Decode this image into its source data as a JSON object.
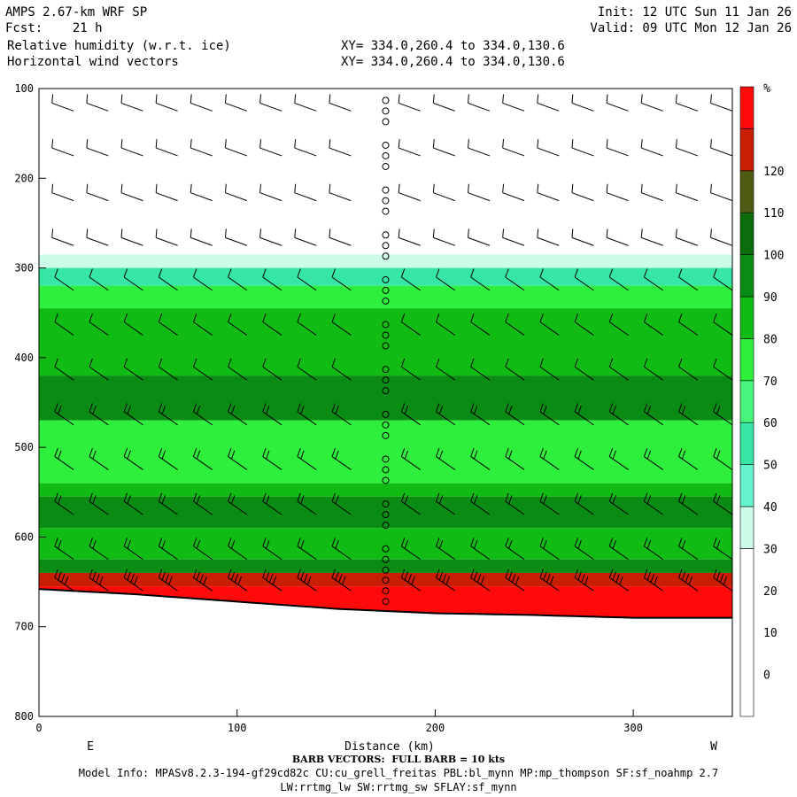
{
  "header": {
    "title": "AMPS 2.67-km WRF SP",
    "fcst": "Fcst:    21 h",
    "field1": "Relative humidity (w.r.t. ice)",
    "field2": "Horizontal wind vectors",
    "init": "Init: 12 UTC Sun 11 Jan 26",
    "valid": "Valid: 09 UTC Mon 12 Jan 26",
    "xy1": "XY= 334.0,260.4 to 334.0,130.6",
    "xy2": "XY= 334.0,260.4 to 334.0,130.6"
  },
  "footer": {
    "barb": "BARB VECTORS:  FULL BARB = 10 kts",
    "model1": "Model Info: MPASv8.2.3-194-gf29cd82c CU:cu_grell_freitas PBL:bl_mynn MP:mp_thompson SF:sf_noahmp 2.7",
    "model2": "LW:rrtmg_lw SW:rrtmg_sw SFLAY:sf_mynn"
  },
  "chart_data": {
    "type": "heatmap",
    "xlabel": "Distance (km)",
    "ylabel": "",
    "xlim": [
      0,
      350
    ],
    "ylim": [
      800,
      100
    ],
    "x_ticks": [
      0,
      100,
      200,
      300
    ],
    "y_ticks": [
      100,
      200,
      300,
      400,
      500,
      600,
      700,
      800
    ],
    "x_end_labels": {
      "left": "E",
      "right": "W"
    },
    "colorbar": {
      "unit": "%",
      "tick_labels": [
        0,
        10,
        20,
        30,
        40,
        50,
        60,
        70,
        80,
        90,
        100,
        110,
        120
      ],
      "levels": [
        {
          "min": -10,
          "max": 30,
          "color": "#ffffff"
        },
        {
          "min": 30,
          "max": 40,
          "color": "#ccfce8"
        },
        {
          "min": 40,
          "max": 50,
          "color": "#66f4cf"
        },
        {
          "min": 50,
          "max": 60,
          "color": "#36e6a4"
        },
        {
          "min": 60,
          "max": 70,
          "color": "#45f57c"
        },
        {
          "min": 70,
          "max": 80,
          "color": "#2ef03c"
        },
        {
          "min": 80,
          "max": 90,
          "color": "#10bc14"
        },
        {
          "min": 90,
          "max": 100,
          "color": "#0a8c14"
        },
        {
          "min": 100,
          "max": 110,
          "color": "#0b6e0b"
        },
        {
          "min": 110,
          "max": 120,
          "color": "#4d5c12"
        },
        {
          "min": 120,
          "max": 130,
          "color": "#c81e04"
        },
        {
          "min": 130,
          "max": 140,
          "color": "#ff0a0a"
        }
      ]
    },
    "rh_layers": [
      {
        "top_hPa": 285,
        "bottom_hPa": 300,
        "rh": 35
      },
      {
        "top_hPa": 300,
        "bottom_hPa": 320,
        "rh": 55
      },
      {
        "top_hPa": 320,
        "bottom_hPa": 345,
        "rh": 75
      },
      {
        "top_hPa": 345,
        "bottom_hPa": 420,
        "rh": 85
      },
      {
        "top_hPa": 420,
        "bottom_hPa": 470,
        "rh": 95
      },
      {
        "top_hPa": 470,
        "bottom_hPa": 540,
        "rh": 75
      },
      {
        "top_hPa": 540,
        "bottom_hPa": 555,
        "rh": 85
      },
      {
        "top_hPa": 555,
        "bottom_hPa": 590,
        "rh": 95
      },
      {
        "top_hPa": 590,
        "bottom_hPa": 625,
        "rh": 80
      },
      {
        "top_hPa": 625,
        "bottom_hPa": 640,
        "rh": 95
      },
      {
        "top_hPa": 640,
        "bottom_hPa": 655,
        "rh": 125
      },
      {
        "top_hPa": 655,
        "bottom_hPa": 700,
        "rh": 135
      }
    ],
    "terrain_hPa": {
      "x": [
        0,
        50,
        100,
        150,
        200,
        250,
        300,
        350
      ],
      "p": [
        658,
        664,
        672,
        680,
        685,
        687,
        690,
        690
      ]
    },
    "barbs": {
      "columns_km": [
        0,
        17.5,
        35,
        52.5,
        70,
        87.5,
        105,
        122.5,
        140,
        157.5,
        175,
        192.5,
        210,
        227.5,
        245,
        262.5,
        280,
        297.5,
        315,
        332.5,
        350
      ],
      "levels_hPa": [
        125,
        175,
        225,
        275,
        325,
        375,
        425,
        475,
        525,
        575,
        625,
        660
      ],
      "calm_column_km": 175
    }
  }
}
